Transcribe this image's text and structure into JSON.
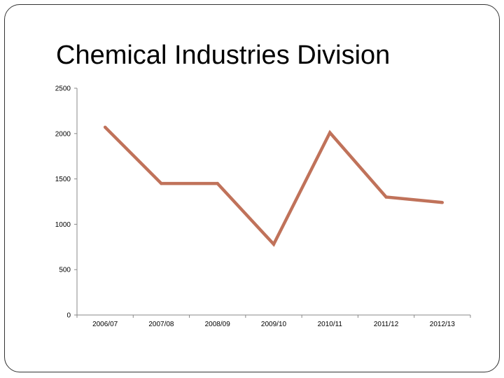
{
  "slide": {
    "title": "Chemical Industries Division"
  },
  "chart_data": {
    "type": "line",
    "title": "Chemical Industries Division",
    "xlabel": "",
    "ylabel": "",
    "categories": [
      "2006/07",
      "2007/08",
      "2008/09",
      "2009/10",
      "2010/11",
      "2011/12",
      "2012/13"
    ],
    "series": [
      {
        "name": "Chemical Industries Division",
        "values": [
          2070,
          1450,
          1450,
          780,
          2010,
          1300,
          1240
        ],
        "color": "#c0725a"
      }
    ],
    "ylim": [
      0,
      2500
    ],
    "yticks": [
      0,
      500,
      1000,
      1500,
      2000,
      2500
    ],
    "grid": false,
    "legend": "none"
  }
}
